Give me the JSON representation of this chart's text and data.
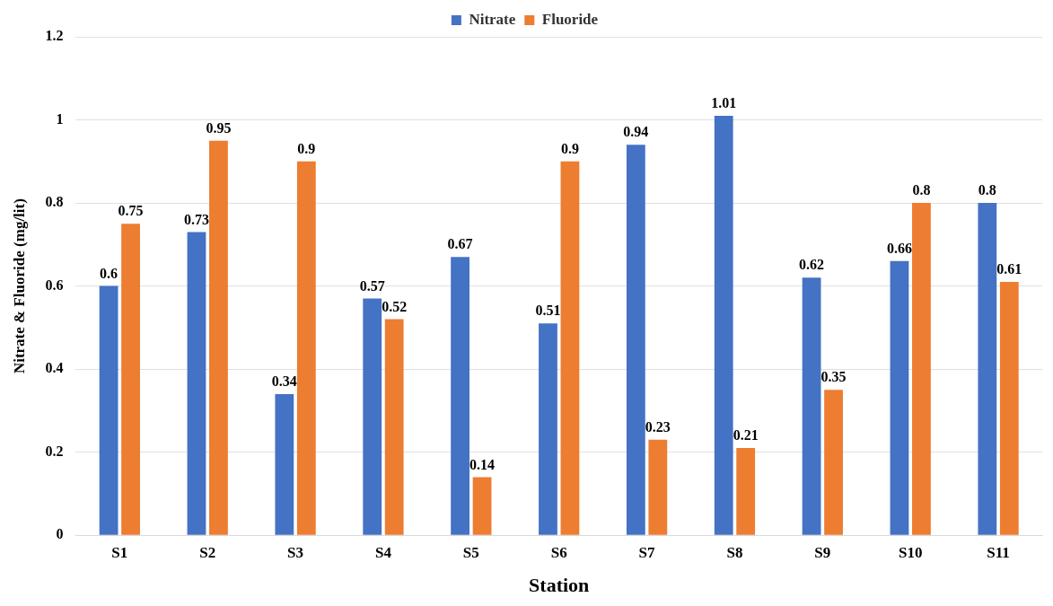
{
  "chart_data": {
    "type": "bar",
    "xlabel": "Station",
    "ylabel": "Nitrate & Fluoride (mg/lit)",
    "categories": [
      "S1",
      "S2",
      "S3",
      "S4",
      "S5",
      "S6",
      "S7",
      "S8",
      "S9",
      "S10",
      "S11"
    ],
    "series": [
      {
        "name": "Nitrate",
        "color": "#4472c4",
        "values": [
          0.6,
          0.73,
          0.34,
          0.57,
          0.67,
          0.51,
          0.94,
          1.01,
          0.62,
          0.66,
          0.8
        ]
      },
      {
        "name": "Fluoride",
        "color": "#ed7d31",
        "values": [
          0.75,
          0.95,
          0.9,
          0.52,
          0.14,
          0.9,
          0.23,
          0.21,
          0.35,
          0.8,
          0.61
        ]
      }
    ],
    "ylim": [
      0,
      1.2
    ],
    "yticks": [
      0,
      0.2,
      0.4,
      0.6,
      0.8,
      1,
      1.2
    ],
    "grid": "y",
    "legend": "top",
    "data_labels": true
  }
}
